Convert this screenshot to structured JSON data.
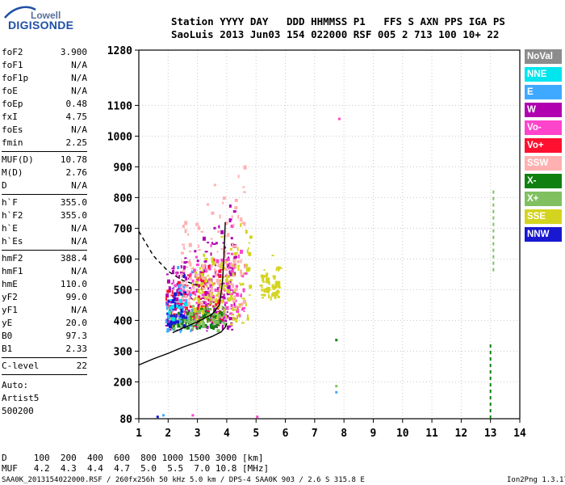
{
  "logo": {
    "top": "Lowell",
    "main": "DIGISONDE"
  },
  "header": {
    "line1": "Station YYYY DAY   DDD HHMMSS P1   FFS S AXN PPS IGA PS",
    "line2": "SaoLuis 2013 Jun03 154 022000 RSF 005 2 713 100 10+ 22"
  },
  "params_group1": [
    {
      "name": "foF2",
      "value": "3.900"
    },
    {
      "name": "foF1",
      "value": "N/A"
    },
    {
      "name": "foF1p",
      "value": "N/A"
    },
    {
      "name": "foE",
      "value": "N/A"
    },
    {
      "name": "foEp",
      "value": "0.48"
    },
    {
      "name": "fxI",
      "value": "4.75"
    },
    {
      "name": "foEs",
      "value": "N/A"
    },
    {
      "name": "fmin",
      "value": "2.25"
    }
  ],
  "params_group2": [
    {
      "name": "MUF(D)",
      "value": "10.78"
    },
    {
      "name": "M(D)",
      "value": "2.76"
    },
    {
      "name": "D",
      "value": "N/A"
    }
  ],
  "params_group3": [
    {
      "name": "h`F",
      "value": "355.0"
    },
    {
      "name": "h`F2",
      "value": "355.0"
    },
    {
      "name": "h`E",
      "value": "N/A"
    },
    {
      "name": "h`Es",
      "value": "N/A"
    }
  ],
  "params_group4": [
    {
      "name": "hmF2",
      "value": "388.4"
    },
    {
      "name": "hmF1",
      "value": "N/A"
    },
    {
      "name": "hmE",
      "value": "110.0"
    },
    {
      "name": "yF2",
      "value": "99.0"
    },
    {
      "name": "yF1",
      "value": "N/A"
    },
    {
      "name": "yE",
      "value": "20.0"
    },
    {
      "name": "B0",
      "value": "97.3"
    },
    {
      "name": "B1",
      "value": "2.33"
    }
  ],
  "params_group5": [
    {
      "name": "C-level",
      "value": "22"
    }
  ],
  "auto": {
    "label": "Auto:",
    "artist": "Artist5",
    "version": "500200"
  },
  "legend": [
    {
      "label": "NoVal",
      "color": "#8c8c8c"
    },
    {
      "label": "NNE",
      "color": "#00e5ee"
    },
    {
      "label": "E",
      "color": "#3fa9ff"
    },
    {
      "label": "W",
      "color": "#b000b0"
    },
    {
      "label": "Vo-",
      "color": "#ff44cc"
    },
    {
      "label": "Vo+",
      "color": "#ff1030"
    },
    {
      "label": "SSW",
      "color": "#ffb0b0"
    },
    {
      "label": "X-",
      "color": "#108010"
    },
    {
      "label": "X+",
      "color": "#80c060"
    },
    {
      "label": "SSE",
      "color": "#d4d420"
    },
    {
      "label": "NNW",
      "color": "#1818d0"
    }
  ],
  "bottom_table": {
    "row_d": "D     100  200  400  600  800 1000 1500 3000 [km]",
    "row_muf": "MUF   4.2  4.3  4.4  4.7  5.0  5.5  7.0 10.8 [MHz]"
  },
  "footer": {
    "left": "SAA0K_2013154022000.RSF / 260fx256h 50 kHz 5.0 km / DPS-4 SAA0K 903 / 2.6 S 315.8 E",
    "right": "Ion2Png 1.3.17"
  },
  "chart_data": {
    "type": "scatter",
    "xlim": [
      1,
      14
    ],
    "ylim": [
      80,
      1280
    ],
    "x_ticks": [
      1,
      2,
      3,
      4,
      5,
      6,
      7,
      8,
      9,
      10,
      11,
      12,
      13,
      14
    ],
    "y_ticks": [
      80,
      200,
      300,
      400,
      500,
      600,
      700,
      800,
      900,
      1000,
      1100,
      1280
    ],
    "grid": true,
    "curves": [
      {
        "name": "profile",
        "style": "solid",
        "x": [
          1.0,
          1.5,
          2.0,
          2.5,
          3.0,
          3.5,
          3.8,
          3.95,
          4.0
        ],
        "y": [
          255,
          275,
          293,
          313,
          330,
          348,
          362,
          378,
          390
        ]
      },
      {
        "name": "trace",
        "style": "solid",
        "x": [
          2.15,
          2.5,
          3.0,
          3.5,
          3.75,
          3.85,
          3.9,
          3.95
        ],
        "y": [
          360,
          375,
          395,
          420,
          450,
          520,
          600,
          720
        ]
      },
      {
        "name": "muf_curve",
        "style": "dashed",
        "x": [
          1.0,
          1.5,
          2.0,
          2.5,
          3.0
        ],
        "y": [
          690,
          610,
          560,
          530,
          515
        ]
      }
    ],
    "clusters": [
      {
        "color": "#b000b0",
        "x": [
          1.9,
          4.3
        ],
        "y": [
          360,
          820
        ],
        "count": 220
      },
      {
        "color": "#ff44cc",
        "x": [
          2.1,
          4.6
        ],
        "y": [
          380,
          740
        ],
        "count": 160
      },
      {
        "color": "#ff1030",
        "x": [
          1.9,
          3.8
        ],
        "y": [
          370,
          640
        ],
        "count": 90
      },
      {
        "color": "#d4d420",
        "x": [
          2.8,
          4.8
        ],
        "y": [
          380,
          790
        ],
        "count": 160
      },
      {
        "color": "#108010",
        "x": [
          2.1,
          3.8
        ],
        "y": [
          370,
          440
        ],
        "count": 90
      },
      {
        "color": "#80c060",
        "x": [
          2.0,
          4.0
        ],
        "y": [
          370,
          470
        ],
        "count": 70
      },
      {
        "color": "#ffb0b0",
        "x": [
          2.4,
          4.6
        ],
        "y": [
          440,
          1000
        ],
        "count": 120
      },
      {
        "color": "#3fa9ff",
        "x": [
          1.9,
          2.8
        ],
        "y": [
          360,
          700
        ],
        "count": 40
      },
      {
        "color": "#1818d0",
        "x": [
          1.9,
          2.6
        ],
        "y": [
          360,
          560
        ],
        "count": 35
      },
      {
        "color": "#00e5ee",
        "x": [
          2.0,
          2.6
        ],
        "y": [
          400,
          520
        ],
        "count": 20
      },
      {
        "color": "#d4d420",
        "x": [
          5.1,
          5.8
        ],
        "y": [
          460,
          650
        ],
        "count": 60
      }
    ],
    "vertical_traces": [
      {
        "color": "#108010",
        "x": 13.0,
        "y": [
          80,
          330
        ]
      },
      {
        "color": "#80c060",
        "x": 13.1,
        "y": [
          560,
          830
        ]
      }
    ]
  }
}
